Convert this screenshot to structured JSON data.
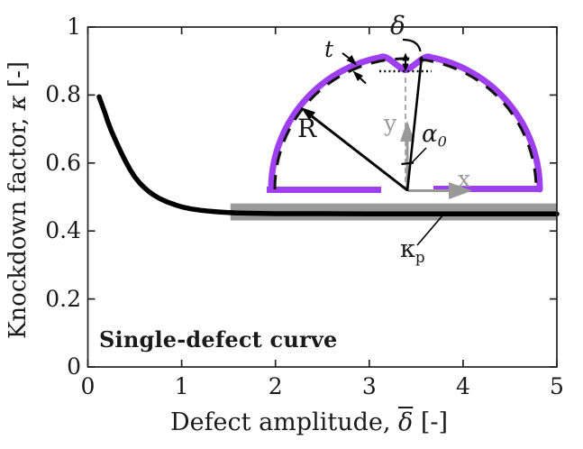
{
  "chart_data": {
    "type": "line",
    "title": "",
    "xlabel": "Defect amplitude, δ̄ [-]",
    "ylabel": "Knockdown factor, κ [-]",
    "xlim": [
      0,
      5
    ],
    "ylim": [
      0,
      1
    ],
    "xticks": [
      "0",
      "1",
      "2",
      "3",
      "4",
      "5"
    ],
    "yticks": [
      "0",
      "0.2",
      "0.4",
      "0.6",
      "0.8",
      "1"
    ],
    "grid": false,
    "legend": "none",
    "annotation": "Single-defect curve",
    "series": [
      {
        "name": "single-defect knockdown curve",
        "color": "#000000",
        "points": [
          [
            0.12,
            0.795
          ],
          [
            0.15,
            0.772
          ],
          [
            0.18,
            0.75
          ],
          [
            0.21,
            0.724
          ],
          [
            0.25,
            0.695
          ],
          [
            0.3,
            0.664
          ],
          [
            0.35,
            0.634
          ],
          [
            0.4,
            0.606
          ],
          [
            0.45,
            0.581
          ],
          [
            0.5,
            0.559
          ],
          [
            0.55,
            0.542
          ],
          [
            0.6,
            0.528
          ],
          [
            0.65,
            0.516
          ],
          [
            0.7,
            0.506
          ],
          [
            0.75,
            0.498
          ],
          [
            0.8,
            0.491
          ],
          [
            0.85,
            0.485
          ],
          [
            0.9,
            0.48
          ],
          [
            0.95,
            0.475
          ],
          [
            1.0,
            0.471
          ],
          [
            1.1,
            0.465
          ],
          [
            1.2,
            0.461
          ],
          [
            1.3,
            0.458
          ],
          [
            1.4,
            0.456
          ],
          [
            1.5,
            0.454
          ],
          [
            1.6,
            0.453
          ],
          [
            1.8,
            0.452
          ],
          [
            2.0,
            0.451
          ],
          [
            2.5,
            0.451
          ],
          [
            3.0,
            0.45
          ],
          [
            3.5,
            0.45
          ],
          [
            4.0,
            0.45
          ],
          [
            4.5,
            0.45
          ],
          [
            5.0,
            0.45
          ]
        ]
      }
    ],
    "plateau": {
      "label": "κp",
      "value": 0.45,
      "band_x": [
        1.52,
        5.0
      ],
      "band_y": [
        0.431,
        0.481
      ],
      "band_color": "#999999"
    }
  },
  "axes": {
    "ylabel": {
      "prefix": "Knockdown factor, ",
      "symbol": "κ",
      "suffix": " [-]"
    },
    "xlabel": {
      "prefix": "Defect amplitude, ",
      "symbol": "δ",
      "suffix": " [-]"
    }
  },
  "labels": {
    "annotation": "Single-defect curve",
    "kappa": "κ",
    "kappa_sub": "p"
  },
  "inset": {
    "shell_color": "#9E3FF0",
    "axis_color": "#999999",
    "dash_color": "#ABABAB",
    "line_color": "#111111",
    "labels": {
      "radius": "R",
      "thickness": "t",
      "defect_amplitude": "δ",
      "angle": "α",
      "angle_sub": "0",
      "x_axis": "x",
      "y_axis": "y"
    }
  }
}
